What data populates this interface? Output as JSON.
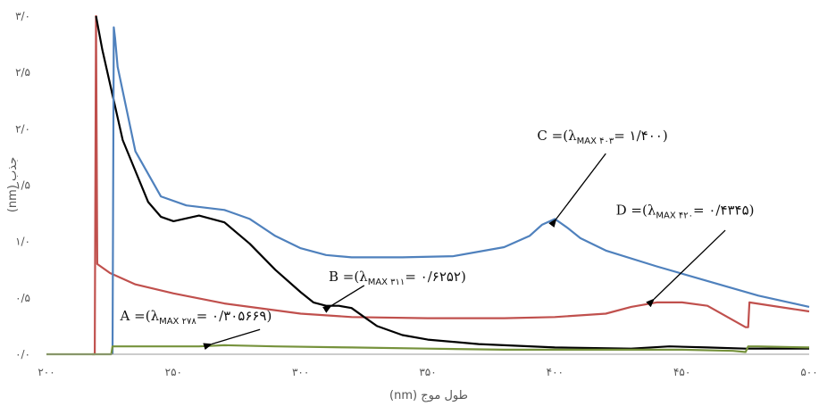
{
  "chart_data": {
    "type": "line",
    "title": "",
    "xlabel": "طول موج (nm)",
    "ylabel": "جذب (nm)",
    "xlim": [
      200,
      500
    ],
    "ylim": [
      0,
      3.0
    ],
    "xticks": [
      {
        "v": 200,
        "label": "۲۰۰"
      },
      {
        "v": 250,
        "label": "۲۵۰"
      },
      {
        "v": 300,
        "label": "۳۰۰"
      },
      {
        "v": 350,
        "label": "۳۵۰"
      },
      {
        "v": 400,
        "label": "۴۰۰"
      },
      {
        "v": 450,
        "label": "۴۵۰"
      },
      {
        "v": 500,
        "label": "۵۰۰"
      }
    ],
    "yticks": [
      {
        "v": 0,
        "label": "۰/۰"
      },
      {
        "v": 0.5,
        "label": "۰/۵"
      },
      {
        "v": 1.0,
        "label": "۱/۰"
      },
      {
        "v": 1.5,
        "label": "۱/۵"
      },
      {
        "v": 2.0,
        "label": "۲/۰"
      },
      {
        "v": 2.5,
        "label": "۲/۵"
      },
      {
        "v": 3.0,
        "label": "۳/۰"
      }
    ],
    "grid": false,
    "legend": "none",
    "series": [
      {
        "color": "#c0504d",
        "x": [
          218,
          219,
          219.5,
          220,
          225,
          235,
          250,
          270,
          300,
          320,
          350,
          380,
          400,
          420,
          430,
          440,
          450,
          460,
          475,
          476,
          476.5,
          500
        ],
        "y": [
          0,
          0,
          3.0,
          0.8,
          0.72,
          0.62,
          0.54,
          0.45,
          0.36,
          0.33,
          0.32,
          0.32,
          0.33,
          0.36,
          0.42,
          0.46,
          0.46,
          0.43,
          0.24,
          0.24,
          0.46,
          0.38
        ]
      },
      {
        "color": "#000000",
        "x": [
          219.5,
          222,
          230,
          240,
          245,
          250,
          260,
          270,
          280,
          290,
          300,
          305,
          310,
          315,
          320,
          325,
          330,
          340,
          350,
          370,
          400,
          430,
          445,
          460,
          475,
          500
        ],
        "y": [
          3.0,
          2.7,
          1.9,
          1.35,
          1.22,
          1.18,
          1.23,
          1.17,
          0.98,
          0.75,
          0.55,
          0.46,
          0.43,
          0.43,
          0.41,
          0.33,
          0.25,
          0.17,
          0.13,
          0.09,
          0.06,
          0.05,
          0.07,
          0.06,
          0.05,
          0.05
        ]
      },
      {
        "color": "#4f81bd",
        "x": [
          226,
          226.5,
          227,
          228,
          235,
          245,
          255,
          270,
          280,
          290,
          300,
          310,
          320,
          340,
          360,
          380,
          390,
          395,
          400,
          405,
          410,
          420,
          440,
          460,
          480,
          500
        ],
        "y": [
          0,
          2.9,
          2.8,
          2.55,
          1.8,
          1.4,
          1.32,
          1.28,
          1.2,
          1.05,
          0.94,
          0.88,
          0.86,
          0.86,
          0.87,
          0.95,
          1.05,
          1.15,
          1.2,
          1.12,
          1.03,
          0.92,
          0.78,
          0.65,
          0.52,
          0.42
        ]
      },
      {
        "color": "#76923c",
        "x": [
          200,
          225.5,
          226,
          240,
          260,
          270,
          290,
          320,
          350,
          380,
          400,
          430,
          450,
          470,
          475,
          476,
          480,
          500
        ],
        "y": [
          0,
          0,
          0.07,
          0.07,
          0.07,
          0.08,
          0.07,
          0.06,
          0.05,
          0.04,
          0.04,
          0.04,
          0.04,
          0.03,
          0.02,
          0.07,
          0.07,
          0.06
        ]
      }
    ],
    "annotations": [
      {
        "name": "annotation-a",
        "prefix": "A =(λ",
        "sub": "MAX ۲۷۸",
        "suffix": "= ۰/۳۰۵۶۶۹)",
        "text_at": [
          229,
          0.3
        ],
        "arrow_from": [
          265,
          0.09
        ],
        "arrow_to": [
          284,
          0.22
        ]
      },
      {
        "name": "annotation-b",
        "prefix": "B =(λ",
        "sub": "MAX ۳۱۱",
        "suffix": "= ۰/۶۲۵۲)",
        "text_at": [
          311,
          0.65
        ],
        "arrow_from": [
          312,
          0.43
        ],
        "arrow_to": [
          325,
          0.61
        ]
      },
      {
        "name": "annotation-c",
        "prefix": "C =(λ",
        "sub": "MAX ۴۰۳",
        "suffix": "= ۱/۴۰۰)",
        "text_at": [
          393,
          1.9
        ],
        "arrow_from": [
          400.5,
          1.2
        ],
        "arrow_to": [
          420,
          1.78
        ]
      },
      {
        "name": "annotation-d",
        "prefix": "D =(λ",
        "sub": "MAX ۴۲۰",
        "suffix": "= ۰/۴۳۴۵)",
        "text_at": [
          424,
          1.24
        ],
        "arrow_from": [
          439,
          0.49
        ],
        "arrow_to": [
          467,
          1.1
        ]
      }
    ]
  }
}
